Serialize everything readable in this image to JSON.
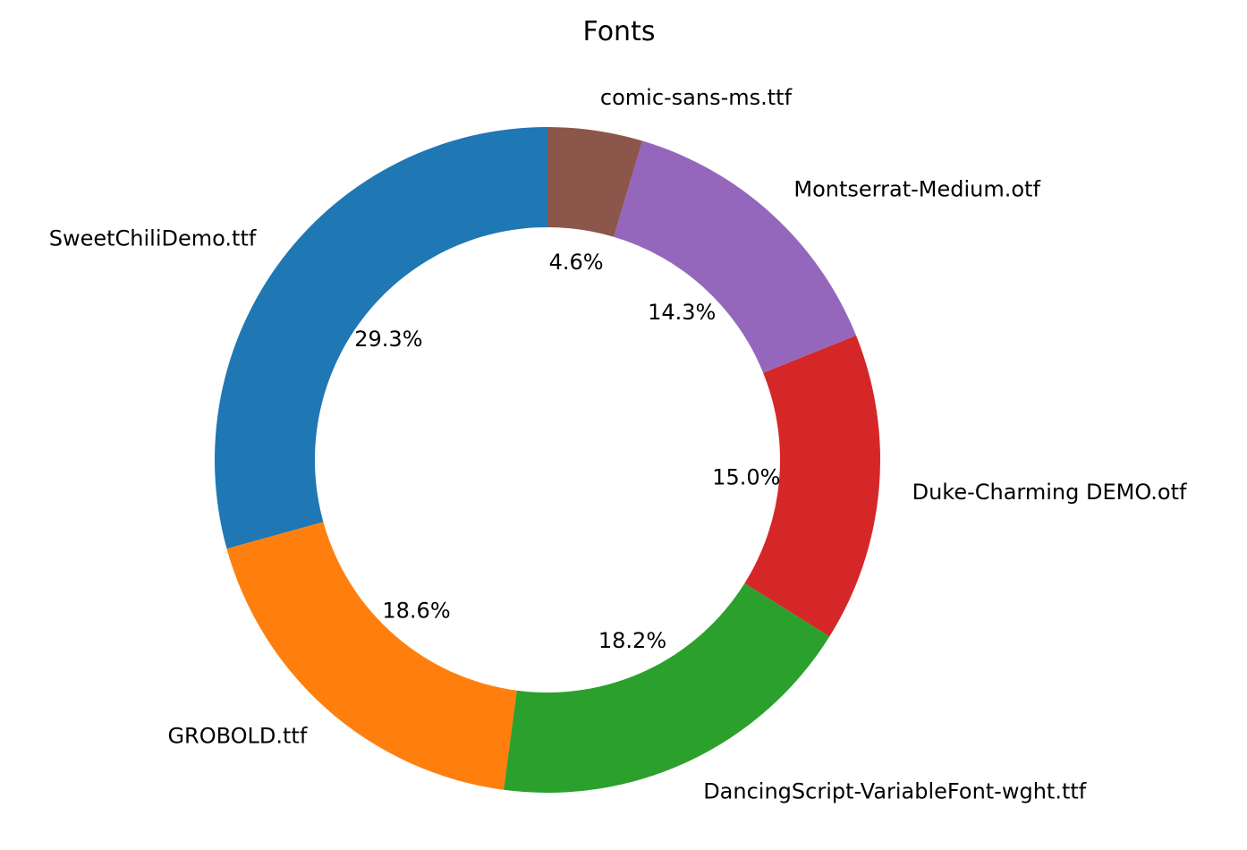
{
  "chart_data": {
    "type": "pie",
    "style": "donut",
    "title": "Fonts",
    "start_angle_deg": 90,
    "direction": "counterclockwise",
    "slices": [
      {
        "label": "SweetChiliDemo.ttf",
        "value": 29.3,
        "pct_label": "29.3%",
        "color": "#1f77b4"
      },
      {
        "label": "GROBOLD.ttf",
        "value": 18.6,
        "pct_label": "18.6%",
        "color": "#ff7f0e"
      },
      {
        "label": "DancingScript-VariableFont-wght.ttf",
        "value": 18.2,
        "pct_label": "18.2%",
        "color": "#2ca02c"
      },
      {
        "label": "Duke-Charming DEMO.otf",
        "value": 15.0,
        "pct_label": "15.0%",
        "color": "#d62728"
      },
      {
        "label": "Montserrat-Medium.otf",
        "value": 14.3,
        "pct_label": "14.3%",
        "color": "#9467bd"
      },
      {
        "label": "comic-sans-ms.ttf",
        "value": 4.6,
        "pct_label": "4.6%",
        "color": "#8c564b"
      }
    ]
  }
}
